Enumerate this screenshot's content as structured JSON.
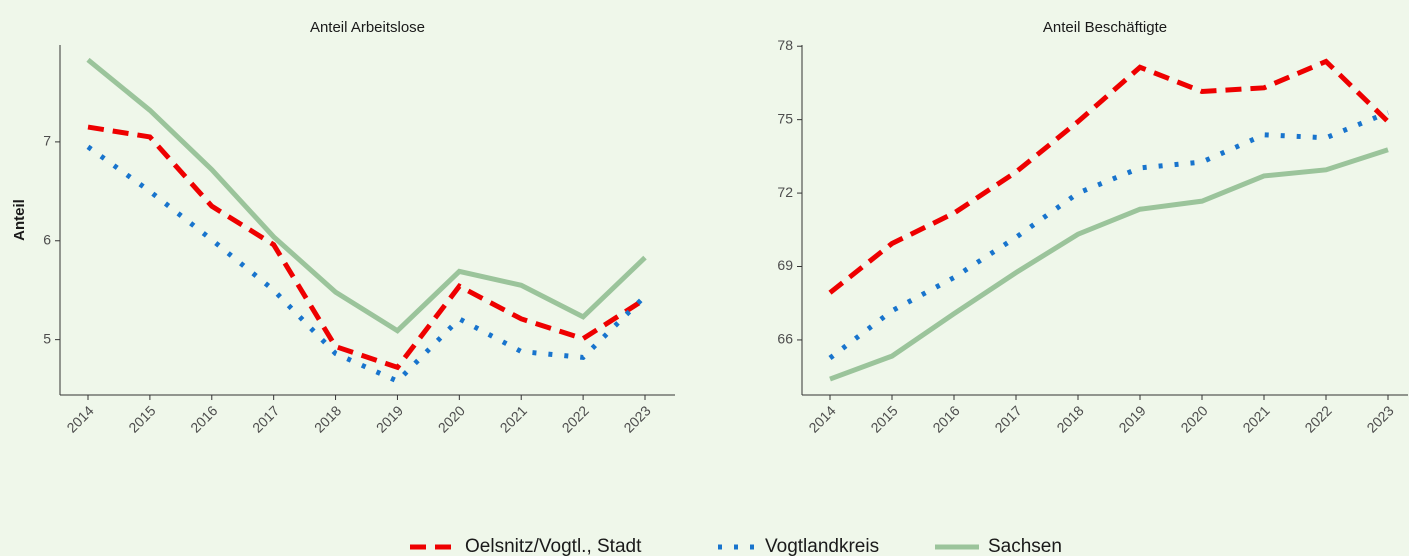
{
  "chart_data": [
    {
      "type": "line",
      "title": "Anteil Arbeitslose",
      "y_label": "Anteil",
      "categories": [
        "2014",
        "2015",
        "2016",
        "2017",
        "2018",
        "2019",
        "2020",
        "2021",
        "2022",
        "2023"
      ],
      "ylim": [
        4.44,
        7.98
      ],
      "yticks": [
        5,
        6,
        7
      ],
      "series": [
        {
          "name": "Oelsnitz/Vogtl., Stadt",
          "color": "#ee0000",
          "style": "dashed",
          "values": [
            7.15,
            7.05,
            6.35,
            5.96,
            4.93,
            4.72,
            5.54,
            5.21,
            5.01,
            5.41
          ]
        },
        {
          "name": "Vogtlandkreis",
          "color": "#1874cd",
          "style": "dotted",
          "values": [
            6.95,
            6.5,
            6.01,
            5.5,
            4.86,
            4.58,
            5.21,
            4.88,
            4.82,
            5.44
          ]
        },
        {
          "name": "Sachsen",
          "color": "#9bc49b",
          "style": "solid",
          "values": [
            7.83,
            7.32,
            6.72,
            6.04,
            5.48,
            5.09,
            5.69,
            5.55,
            5.23,
            5.83
          ]
        }
      ]
    },
    {
      "type": "line",
      "title": "Anteil Beschäftigte",
      "categories": [
        "2014",
        "2015",
        "2016",
        "2017",
        "2018",
        "2019",
        "2020",
        "2021",
        "2022",
        "2023"
      ],
      "ylim": [
        63.75,
        78.05
      ],
      "yticks": [
        66,
        69,
        72,
        75,
        78
      ],
      "series": [
        {
          "name": "Oelsnitz/Vogtl., Stadt",
          "color": "#ee0000",
          "style": "dashed",
          "values": [
            67.93,
            69.94,
            71.18,
            72.86,
            74.92,
            77.14,
            76.15,
            76.3,
            77.38,
            74.92
          ]
        },
        {
          "name": "Vogtlandkreis",
          "color": "#1874cd",
          "style": "dotted",
          "values": [
            65.26,
            67.19,
            68.55,
            70.19,
            72.0,
            73.03,
            73.27,
            74.38,
            74.26,
            75.29
          ]
        },
        {
          "name": "Sachsen",
          "color": "#9bc49b",
          "style": "solid",
          "values": [
            64.4,
            65.34,
            67.07,
            68.75,
            70.32,
            71.34,
            71.67,
            72.7,
            72.95,
            73.77
          ]
        }
      ]
    }
  ]
}
